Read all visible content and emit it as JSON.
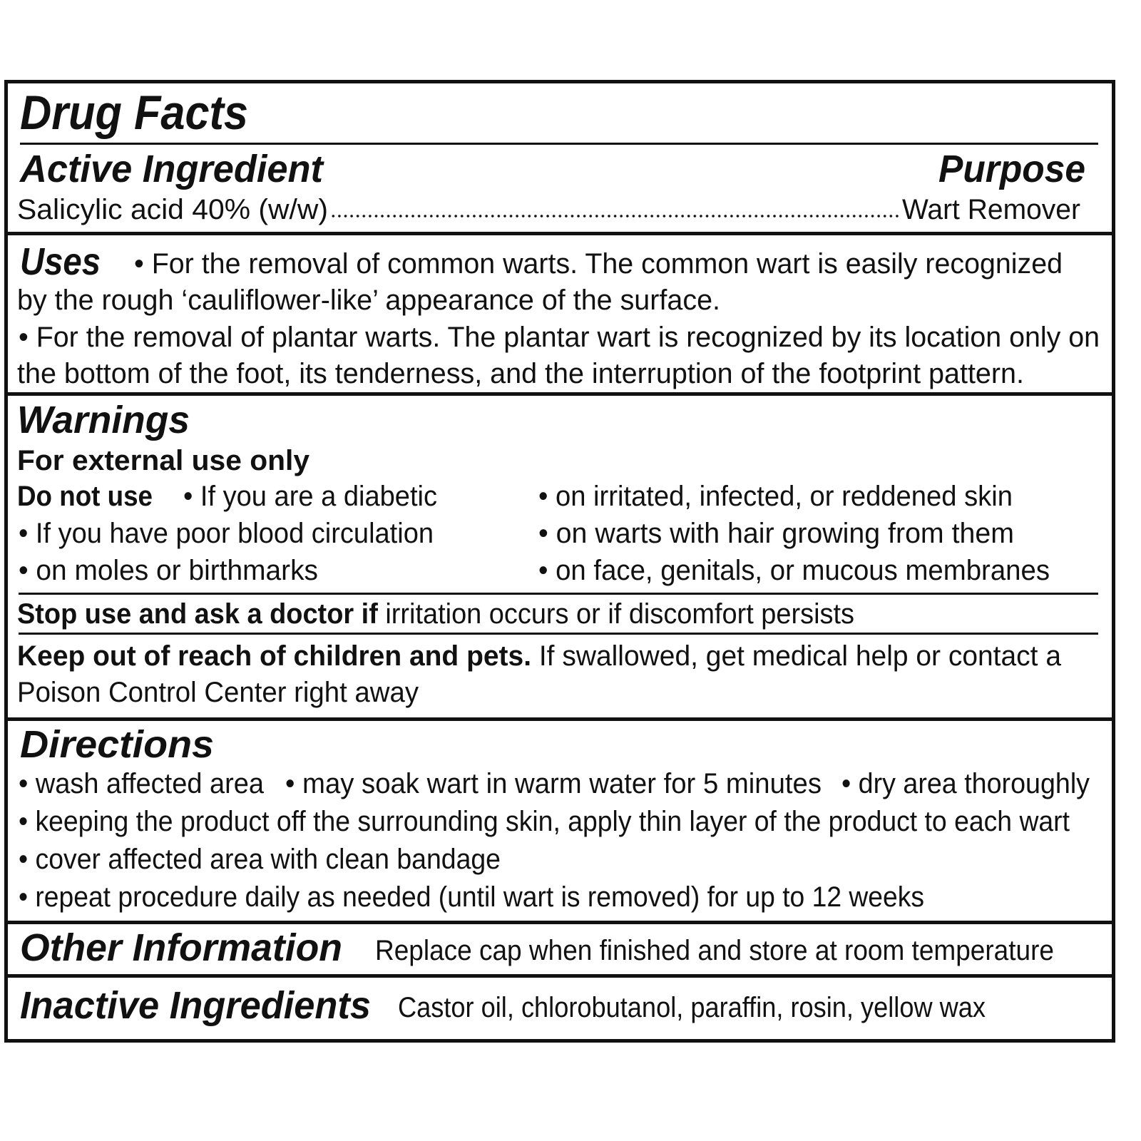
{
  "title": "Drug Facts",
  "active": {
    "heading": "Active Ingredient",
    "purpose_heading": "Purpose",
    "ingredient": "Salicylic acid 40% (w/w)",
    "purpose": "Wart Remover"
  },
  "uses": {
    "heading": "Uses",
    "lines": [
      "• For the removal of common warts. The common wart is easily recognized",
      "by the rough ‘cauliflower-like’ appearance of the surface.",
      "• For the removal of plantar warts. The plantar wart is recognized by its location only on",
      "the bottom of the foot, its tenderness, and the interruption of the footprint pattern."
    ]
  },
  "warnings": {
    "heading": "Warnings",
    "external": "For external use only",
    "do_not_use_label": "Do not use",
    "do_not_use": [
      "• If you are a diabetic",
      "• If you have poor blood circulation",
      "• on moles or birthmarks",
      "• on irritated, infected, or reddened skin",
      "• on warts with hair growing from them",
      "• on face, genitals, or mucous membranes"
    ],
    "stop_label": "Stop use and ask a doctor if",
    "stop_text": " irritation occurs or if discomfort persists",
    "keep_label": "Keep out of reach of children and pets.",
    "keep_text": " If swallowed, get medical help or contact a",
    "keep_text2": "Poison Control Center right away"
  },
  "directions": {
    "heading": "Directions",
    "lines": [
      "• wash affected area",
      "• may soak wart in warm water for 5 minutes",
      "• dry area thoroughly",
      "• keeping the product off the surrounding skin, apply thin layer of the product to each wart",
      "• cover affected area with clean bandage",
      "• repeat procedure daily as needed (until wart is removed) for up to 12 weeks"
    ]
  },
  "other": {
    "heading": "Other Information",
    "text": "Replace cap when finished and store at room temperature"
  },
  "inactive": {
    "heading": "Inactive Ingredients",
    "text": "Castor oil, chlorobutanol, paraffin, rosin, yellow wax"
  }
}
